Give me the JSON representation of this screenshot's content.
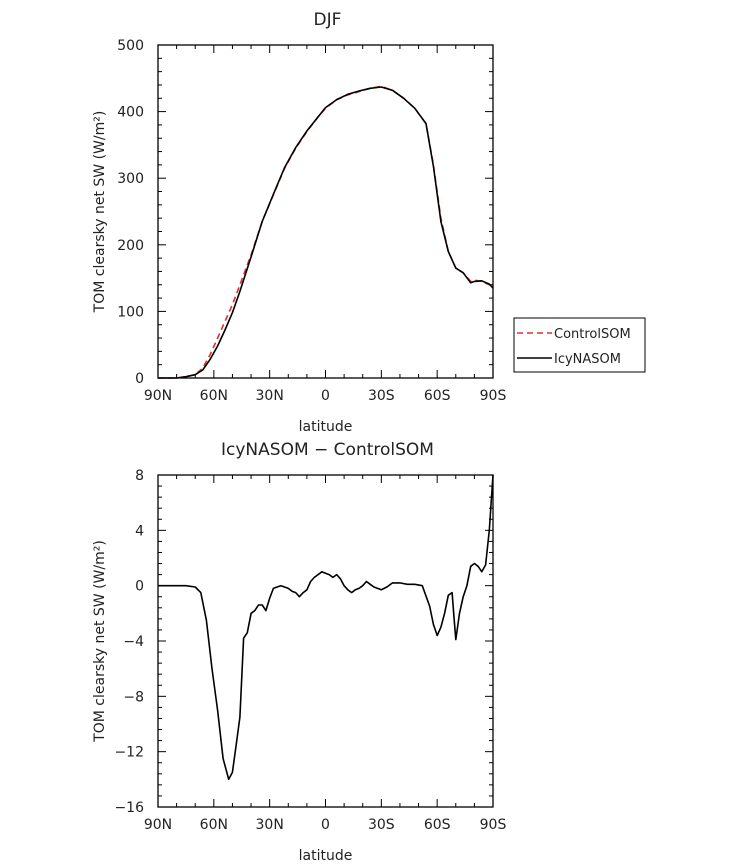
{
  "chart_data": [
    {
      "type": "line",
      "title": "DJF",
      "xlabel": "latitude",
      "ylabel": "TOM clearsky net SW (W/m²)",
      "xlim": [
        90,
        -90
      ],
      "ylim": [
        0,
        500
      ],
      "xticks": [
        90,
        60,
        30,
        0,
        -30,
        -60,
        -90
      ],
      "xtick_labels": [
        "90N",
        "60N",
        "30N",
        "0",
        "30S",
        "60S",
        "90S"
      ],
      "yticks": [
        0,
        100,
        200,
        300,
        400,
        500
      ],
      "ytick_labels": [
        "0",
        "100",
        "200",
        "300",
        "400",
        "500"
      ],
      "legend": "right",
      "grid": false,
      "series": [
        {
          "name": "ControlSOM",
          "color": "#e03030",
          "dash": "dashed",
          "x": [
            90,
            85,
            80,
            75,
            70,
            66,
            62,
            58,
            54,
            50,
            46,
            40,
            34,
            28,
            22,
            16,
            10,
            4,
            0,
            -6,
            -12,
            -18,
            -24,
            -30,
            -36,
            -42,
            -48,
            -54,
            -58,
            -62,
            -66,
            -70,
            -74,
            -78,
            -80,
            -84,
            -88,
            -90
          ],
          "y": [
            0,
            0,
            0,
            2,
            5,
            15,
            35,
            60,
            85,
            110,
            140,
            185,
            235,
            275,
            315,
            345,
            370,
            392,
            405,
            418,
            425,
            430,
            435,
            438,
            432,
            420,
            405,
            382,
            320,
            240,
            190,
            165,
            158,
            145,
            147,
            145,
            140,
            138
          ]
        },
        {
          "name": "IcyNASOM",
          "color": "#000000",
          "dash": "solid",
          "x": [
            90,
            85,
            80,
            75,
            70,
            66,
            62,
            58,
            54,
            50,
            46,
            40,
            34,
            28,
            22,
            16,
            10,
            4,
            0,
            -6,
            -12,
            -18,
            -24,
            -30,
            -36,
            -42,
            -48,
            -54,
            -58,
            -62,
            -66,
            -70,
            -74,
            -78,
            -80,
            -84,
            -88,
            -90
          ],
          "y": [
            0,
            0,
            0,
            2,
            5,
            12,
            28,
            48,
            72,
            98,
            130,
            182,
            235,
            276,
            316,
            346,
            371,
            392,
            406,
            418,
            426,
            431,
            435,
            437,
            432,
            420,
            405,
            382,
            318,
            235,
            190,
            165,
            158,
            143,
            145,
            146,
            141,
            135
          ]
        }
      ]
    },
    {
      "type": "line",
      "title": "IcyNASOM − ControlSOM",
      "xlabel": "latitude",
      "ylabel": "TOM clearsky net SW (W/m²)",
      "xlim": [
        90,
        -90
      ],
      "ylim": [
        -16,
        8
      ],
      "xticks": [
        90,
        60,
        30,
        0,
        -30,
        -60,
        -90
      ],
      "xtick_labels": [
        "90N",
        "60N",
        "30N",
        "0",
        "30S",
        "60S",
        "90S"
      ],
      "yticks": [
        8,
        4,
        0,
        -4,
        -8,
        -12,
        -16
      ],
      "ytick_labels": [
        "8",
        "4",
        "0",
        "−4",
        "−8",
        "−12",
        "−16"
      ],
      "grid": false,
      "series": [
        {
          "color": "#000000",
          "dash": "solid",
          "x": [
            90,
            80,
            75,
            70,
            67,
            64,
            61,
            58,
            55,
            52,
            50,
            48,
            46,
            44,
            42,
            40,
            38,
            36,
            34,
            32,
            30,
            28,
            26,
            24,
            22,
            20,
            18,
            16,
            14,
            12,
            10,
            8,
            6,
            4,
            2,
            0,
            -2,
            -4,
            -6,
            -8,
            -10,
            -12,
            -14,
            -16,
            -18,
            -20,
            -22,
            -24,
            -26,
            -28,
            -30,
            -33,
            -36,
            -40,
            -44,
            -48,
            -52,
            -56,
            -58,
            -60,
            -62,
            -64,
            -66,
            -68,
            -69,
            -70,
            -72,
            -74,
            -76,
            -78,
            -80,
            -82,
            -84,
            -86,
            -88,
            -90
          ],
          "y": [
            0,
            0,
            0,
            -0.1,
            -0.5,
            -2.5,
            -6,
            -9,
            -12.5,
            -14,
            -13.5,
            -11.5,
            -9.5,
            -3.8,
            -3.4,
            -2,
            -1.8,
            -1.4,
            -1.4,
            -1.8,
            -0.9,
            -0.2,
            -0.1,
            0,
            -0.1,
            -0.2,
            -0.4,
            -0.5,
            -0.8,
            -0.5,
            -0.3,
            0.3,
            0.6,
            0.8,
            1,
            0.9,
            0.8,
            0.6,
            0.8,
            0.5,
            0,
            -0.3,
            -0.5,
            -0.3,
            -0.2,
            0,
            0.3,
            0.1,
            -0.1,
            -0.2,
            -0.3,
            -0.1,
            0.2,
            0.2,
            0.1,
            0.1,
            0,
            -1.5,
            -2.8,
            -3.6,
            -3,
            -2,
            -0.7,
            -0.5,
            -2.2,
            -3.9,
            -2,
            -0.8,
            0,
            1.4,
            1.6,
            1.4,
            1,
            1.5,
            4,
            8
          ]
        }
      ]
    }
  ]
}
